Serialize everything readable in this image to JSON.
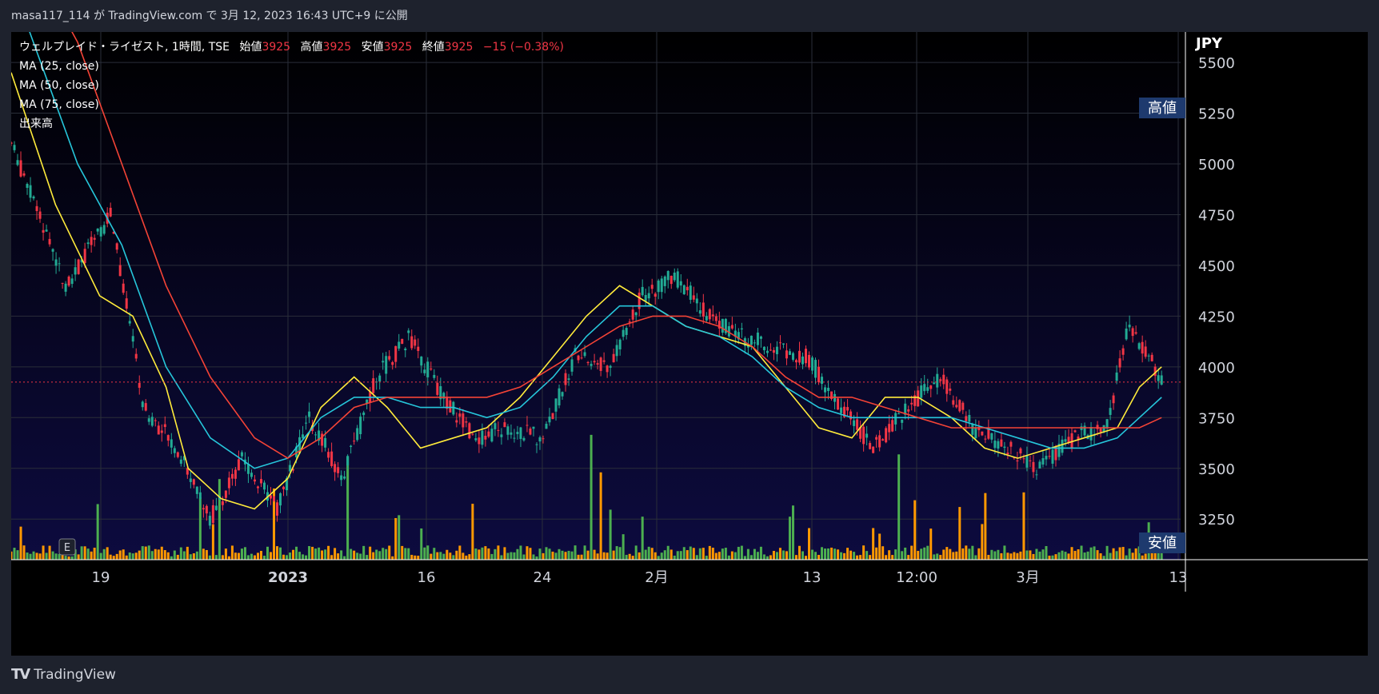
{
  "header": {
    "published_by": "masa117_114 が TradingView.com で 3月 12, 2023 16:43 UTC+9 に公開"
  },
  "legend": {
    "symbol": "ウェルプレイド・ライゼスト, 1時間, TSE",
    "open_label": "始値",
    "open": "3925",
    "high_label": "高値",
    "high": "3925",
    "low_label": "安値",
    "low": "3925",
    "close_label": "終値",
    "close": "3925",
    "change": "−15 (−0.38%)",
    "ma25": "MA (25, close)",
    "ma50": "MA (50, close)",
    "ma75": "MA (75, close)",
    "volume": "出来高"
  },
  "footer": {
    "brand": "TradingView"
  },
  "colors": {
    "bg_top": "#000000",
    "bg_bottom": "#0d0b3f",
    "up": "#f23645",
    "down": "#22ab94",
    "ma25": "#ffeb3b",
    "ma50": "#26c6da",
    "ma75": "#f44336",
    "vol_up": "#ff9800",
    "vol_down": "#4caf50",
    "label_bg": "#1e3a6e"
  },
  "chart_data": {
    "type": "line",
    "title": "",
    "currency": "JPY",
    "ylim": [
      3050,
      5650
    ],
    "y_ticks": [
      3250,
      3500,
      3750,
      4000,
      4250,
      4500,
      4750,
      5000,
      5250,
      5500
    ],
    "x_labels": [
      "19",
      "2023",
      "16",
      "24",
      "2月",
      "13",
      "12:00",
      "3月",
      "13"
    ],
    "high_marker_label": "高値",
    "low_marker_label": "安値",
    "last_price": 3925,
    "ohlc_close_approx": [
      {
        "t": 0,
        "close": 5100
      },
      {
        "t": 5,
        "close": 4400
      },
      {
        "t": 9,
        "close": 4750
      },
      {
        "t": 12,
        "close": 3800
      },
      {
        "t": 15,
        "close": 3600
      },
      {
        "t": 18,
        "close": 3250
      },
      {
        "t": 21,
        "close": 3550
      },
      {
        "t": 24,
        "close": 3300
      },
      {
        "t": 27,
        "close": 3750
      },
      {
        "t": 30,
        "close": 3450
      },
      {
        "t": 33,
        "close": 3950
      },
      {
        "t": 36,
        "close": 4150
      },
      {
        "t": 39,
        "close": 3850
      },
      {
        "t": 42,
        "close": 3650
      },
      {
        "t": 45,
        "close": 3700
      },
      {
        "t": 48,
        "close": 3650
      },
      {
        "t": 51,
        "close": 4050
      },
      {
        "t": 54,
        "close": 4000
      },
      {
        "t": 57,
        "close": 4350
      },
      {
        "t": 60,
        "close": 4450
      },
      {
        "t": 63,
        "close": 4250
      },
      {
        "t": 66,
        "close": 4150
      },
      {
        "t": 69,
        "close": 4100
      },
      {
        "t": 72,
        "close": 4050
      },
      {
        "t": 75,
        "close": 3800
      },
      {
        "t": 78,
        "close": 3600
      },
      {
        "t": 81,
        "close": 3800
      },
      {
        "t": 84,
        "close": 3950
      },
      {
        "t": 87,
        "close": 3700
      },
      {
        "t": 90,
        "close": 3600
      },
      {
        "t": 93,
        "close": 3500
      },
      {
        "t": 96,
        "close": 3650
      },
      {
        "t": 99,
        "close": 3700
      },
      {
        "t": 101,
        "close": 4200
      },
      {
        "t": 103,
        "close": 4050
      },
      {
        "t": 104,
        "close": 3925
      }
    ],
    "series": [
      {
        "name": "MA (25, close)",
        "color": "#ffeb3b",
        "points": [
          [
            0,
            5450
          ],
          [
            4,
            4800
          ],
          [
            8,
            4350
          ],
          [
            11,
            4250
          ],
          [
            14,
            3900
          ],
          [
            16,
            3500
          ],
          [
            19,
            3350
          ],
          [
            22,
            3300
          ],
          [
            25,
            3450
          ],
          [
            28,
            3800
          ],
          [
            31,
            3950
          ],
          [
            34,
            3800
          ],
          [
            37,
            3600
          ],
          [
            40,
            3650
          ],
          [
            43,
            3700
          ],
          [
            46,
            3850
          ],
          [
            49,
            4050
          ],
          [
            52,
            4250
          ],
          [
            55,
            4400
          ],
          [
            58,
            4300
          ],
          [
            61,
            4200
          ],
          [
            64,
            4150
          ],
          [
            67,
            4100
          ],
          [
            70,
            3900
          ],
          [
            73,
            3700
          ],
          [
            76,
            3650
          ],
          [
            79,
            3850
          ],
          [
            82,
            3850
          ],
          [
            85,
            3750
          ],
          [
            88,
            3600
          ],
          [
            91,
            3550
          ],
          [
            94,
            3600
          ],
          [
            97,
            3650
          ],
          [
            100,
            3700
          ],
          [
            102,
            3900
          ],
          [
            104,
            4000
          ]
        ]
      },
      {
        "name": "MA (50, close)",
        "color": "#26c6da",
        "points": [
          [
            0,
            5900
          ],
          [
            6,
            5000
          ],
          [
            10,
            4600
          ],
          [
            14,
            4000
          ],
          [
            18,
            3650
          ],
          [
            22,
            3500
          ],
          [
            25,
            3550
          ],
          [
            28,
            3750
          ],
          [
            31,
            3850
          ],
          [
            34,
            3850
          ],
          [
            37,
            3800
          ],
          [
            40,
            3800
          ],
          [
            43,
            3750
          ],
          [
            46,
            3800
          ],
          [
            49,
            3950
          ],
          [
            52,
            4150
          ],
          [
            55,
            4300
          ],
          [
            58,
            4300
          ],
          [
            61,
            4200
          ],
          [
            64,
            4150
          ],
          [
            67,
            4050
          ],
          [
            70,
            3900
          ],
          [
            73,
            3800
          ],
          [
            76,
            3750
          ],
          [
            79,
            3750
          ],
          [
            82,
            3750
          ],
          [
            85,
            3750
          ],
          [
            88,
            3700
          ],
          [
            91,
            3650
          ],
          [
            94,
            3600
          ],
          [
            97,
            3600
          ],
          [
            100,
            3650
          ],
          [
            102,
            3750
          ],
          [
            104,
            3850
          ]
        ]
      },
      {
        "name": "MA (75, close)",
        "color": "#f44336",
        "points": [
          [
            0,
            6200
          ],
          [
            6,
            5600
          ],
          [
            10,
            5000
          ],
          [
            14,
            4400
          ],
          [
            18,
            3950
          ],
          [
            22,
            3650
          ],
          [
            25,
            3550
          ],
          [
            28,
            3650
          ],
          [
            31,
            3800
          ],
          [
            34,
            3850
          ],
          [
            37,
            3850
          ],
          [
            40,
            3850
          ],
          [
            43,
            3850
          ],
          [
            46,
            3900
          ],
          [
            49,
            4000
          ],
          [
            52,
            4100
          ],
          [
            55,
            4200
          ],
          [
            58,
            4250
          ],
          [
            61,
            4250
          ],
          [
            64,
            4200
          ],
          [
            67,
            4100
          ],
          [
            70,
            3950
          ],
          [
            73,
            3850
          ],
          [
            76,
            3850
          ],
          [
            79,
            3800
          ],
          [
            82,
            3750
          ],
          [
            85,
            3700
          ],
          [
            88,
            3700
          ],
          [
            91,
            3700
          ],
          [
            94,
            3700
          ],
          [
            97,
            3700
          ],
          [
            100,
            3700
          ],
          [
            102,
            3700
          ],
          [
            104,
            3750
          ]
        ]
      }
    ]
  }
}
